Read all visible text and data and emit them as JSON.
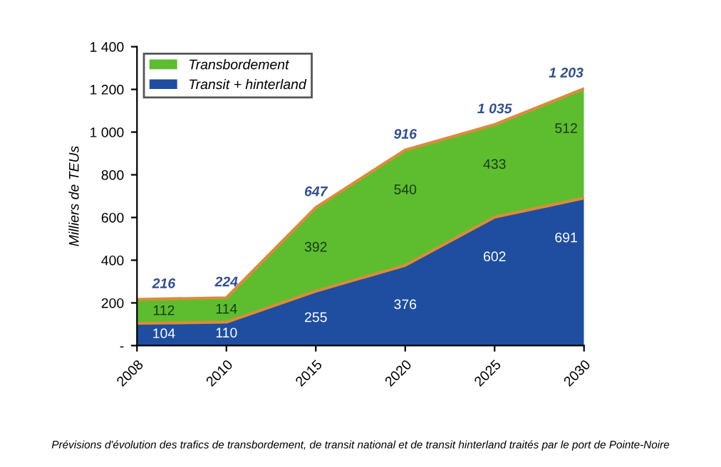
{
  "chart_data": {
    "type": "area",
    "stacked": true,
    "categories": [
      "2008",
      "2010",
      "2015",
      "2020",
      "2025",
      "2030"
    ],
    "series": [
      {
        "name": "Transit + hinterland",
        "color": "#1f4ea0",
        "values": [
          104,
          110,
          255,
          376,
          602,
          691
        ]
      },
      {
        "name": "Transbordement",
        "color": "#5dbd2e",
        "values": [
          112,
          114,
          392,
          540,
          433,
          512
        ]
      }
    ],
    "ylabel": "Milliers de TEUs",
    "ylim": [
      0,
      1400
    ],
    "yticks": [
      {
        "value": 0,
        "label": "-"
      },
      200,
      400,
      600,
      800,
      1000,
      1200,
      {
        "value": 1400,
        "label": "1 400"
      }
    ],
    "data_labels": true,
    "totals": [
      "216",
      "224",
      "647",
      "916",
      "1 035",
      "1 203"
    ],
    "legend": "top left",
    "grid": false,
    "annotations": [
      "Prévisions d'évolution des trafics de transbordement, de transit national et de transit hinterland traités par le port de Pointe-Noire"
    ]
  }
}
